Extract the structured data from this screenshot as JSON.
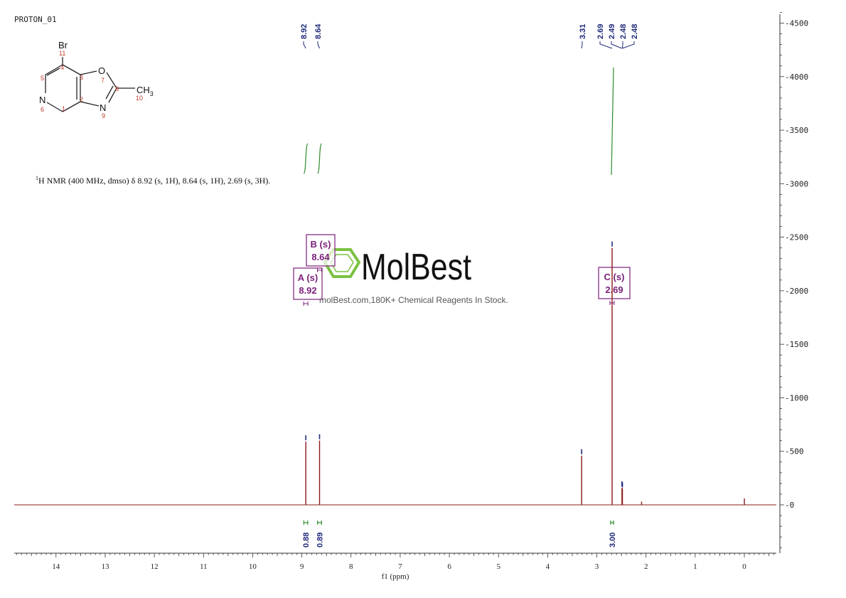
{
  "header": {
    "experiment": "PROTON_01"
  },
  "description": {
    "nucleus_sup": "1",
    "text": "H NMR (400 MHz, dmso) δ 8.92 (s, 1H), 8.64 (s, 1H), 2.69 (s, 3H)."
  },
  "molecule": {
    "atoms": {
      "br": "Br",
      "o": "O",
      "n_ring": "N",
      "n_oxazole": "N",
      "ch3": "CH",
      "ch3_sub": "3"
    },
    "numbers": [
      "1",
      "2",
      "3",
      "4",
      "5",
      "6",
      "7",
      "8",
      "9",
      "10",
      "11"
    ]
  },
  "watermark": {
    "brand": "MolBest",
    "tagline": "molBest.com,180K+ Chemical Reagents In Stock."
  },
  "colors": {
    "spectrum": "#8b1a1a",
    "peak_label": "#1f2a7a",
    "integral": "#2e8b2e",
    "multiplet": "#7a1f7a",
    "watermark": "#7cc242"
  },
  "chart_data": {
    "type": "line",
    "xlabel": "f1  (ppm)",
    "xlim": [
      14.85,
      -0.65
    ],
    "ylim": [
      -450,
      4600
    ],
    "x_ticks": [
      "14",
      "13",
      "12",
      "11",
      "10",
      "9",
      "8",
      "7",
      "6",
      "5",
      "4",
      "3",
      "2",
      "1",
      "0"
    ],
    "y_ticks": [
      "4500",
      "4000",
      "3500",
      "3000",
      "2500",
      "2000",
      "1500",
      "1000",
      "500",
      "0"
    ],
    "peaks": [
      {
        "x": 8.92,
        "y": 590
      },
      {
        "x": 8.64,
        "y": 600
      },
      {
        "x": 3.31,
        "y": 460
      },
      {
        "x": 2.69,
        "y": 2400
      },
      {
        "x": 2.49,
        "y": 160
      },
      {
        "x": 2.48,
        "y": 150
      },
      {
        "x": 2.09,
        "y": 30
      },
      {
        "x": 0.0,
        "y": 60
      }
    ],
    "peak_labels": [
      "8.92",
      "8.64",
      "3.31",
      "2.69",
      "2.49",
      "2.48",
      "2.48"
    ],
    "multiplets": [
      {
        "name": "A (s)",
        "shift": "8.92"
      },
      {
        "name": "B (s)",
        "shift": "8.64"
      },
      {
        "name": "C (s)",
        "shift": "2.69"
      }
    ],
    "integrals": [
      {
        "from": 8.96,
        "to": 8.88,
        "value": "0.88"
      },
      {
        "from": 8.68,
        "to": 8.6,
        "value": "0.89"
      },
      {
        "from": 2.72,
        "to": 2.66,
        "value": "3.00"
      }
    ]
  }
}
